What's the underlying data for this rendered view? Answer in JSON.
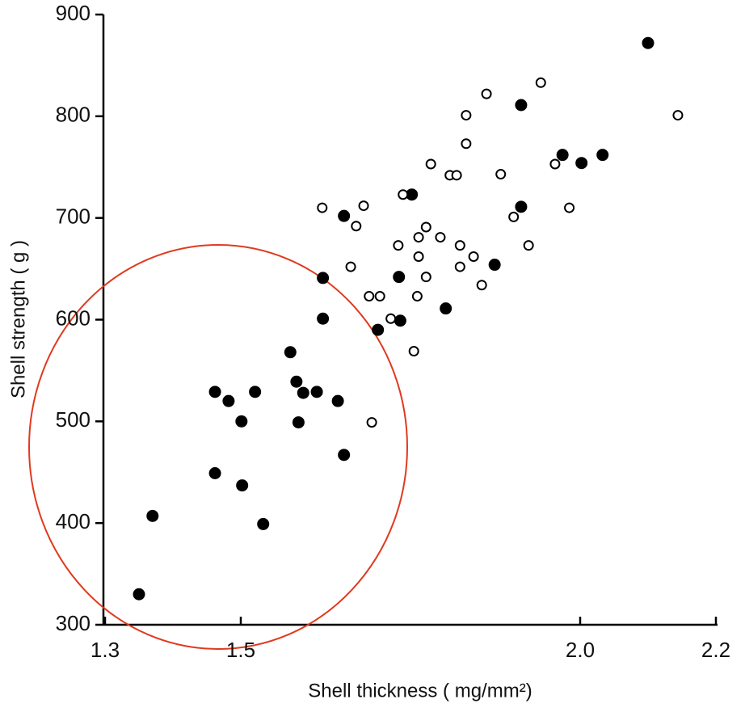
{
  "chart_data": {
    "type": "scatter",
    "x_label": "Shell thickness ( mg/mm²)",
    "y_label": "Shell strength ( g )",
    "xlim": [
      1.3,
      2.2
    ],
    "ylim": [
      300,
      900
    ],
    "xticks": [
      1.3,
      1.5,
      {
        "value": 2,
        "label": "2.0"
      },
      2.2
    ],
    "yticks": [
      300,
      400,
      500,
      600,
      700,
      800,
      900
    ],
    "series": [
      {
        "color": "#000000",
        "filled": true,
        "x": [
          1.35,
          1.37,
          1.462,
          1.482,
          1.501,
          1.462,
          1.502,
          1.521,
          1.533,
          1.573,
          1.582,
          1.585,
          1.592,
          1.612,
          1.643,
          1.652,
          1.621,
          1.621,
          1.652,
          1.702,
          1.733,
          1.735,
          1.752,
          1.802,
          1.874,
          1.913,
          1.913,
          1.974,
          2.002,
          2.033,
          2.1
        ],
        "values": [
          330,
          407,
          529,
          520,
          500,
          449,
          437,
          529,
          399,
          568,
          539,
          499,
          528,
          529,
          520,
          467,
          601,
          641,
          702,
          590,
          642,
          599,
          723,
          611,
          654,
          711,
          811,
          762,
          754,
          762,
          872
        ]
      },
      {
        "color": "#000000",
        "filled": false,
        "x": [
          1.62,
          1.681,
          1.67,
          1.662,
          1.689,
          1.705,
          1.721,
          1.755,
          1.693,
          1.732,
          1.739,
          1.762,
          1.762,
          1.773,
          1.773,
          1.76,
          1.794,
          1.78,
          1.808,
          1.818,
          1.823,
          1.823,
          1.832,
          1.832,
          1.843,
          1.855,
          1.862,
          1.883,
          1.902,
          1.924,
          1.942,
          1.963,
          1.984,
          2.144
        ],
        "values": [
          710,
          712,
          692,
          652,
          623,
          623,
          601,
          569,
          499,
          673,
          723,
          681,
          662,
          691,
          642,
          623,
          681,
          753,
          742,
          742,
          673,
          652,
          773,
          801,
          662,
          634,
          822,
          743,
          701,
          673,
          833,
          753,
          710,
          801
        ]
      }
    ]
  }
}
